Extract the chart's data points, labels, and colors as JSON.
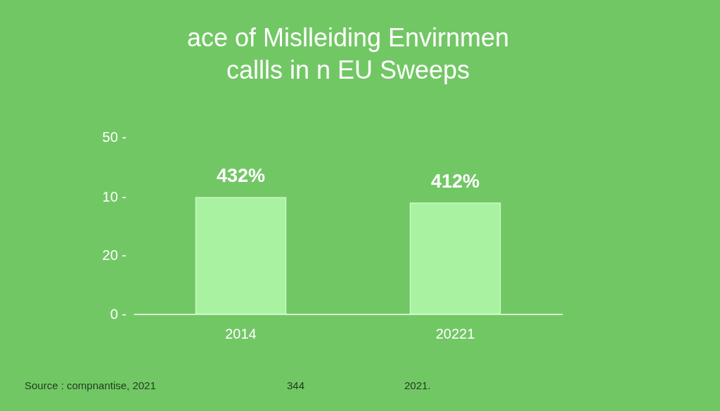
{
  "chart_data": {
    "type": "bar",
    "title": [
      "ace of Mislleiding Envirnmen",
      "callls in n EU Sweeps"
    ],
    "categories": [
      "2014",
      "20221"
    ],
    "values": [
      432,
      412
    ],
    "value_labels": [
      "432%",
      "412%"
    ],
    "color": "#a9f2a2",
    "annotations": [
      "50 -",
      "10 -",
      "20 -",
      "0 -",
      "Source : compnantise, 2021",
      "344",
      "2021."
    ]
  }
}
